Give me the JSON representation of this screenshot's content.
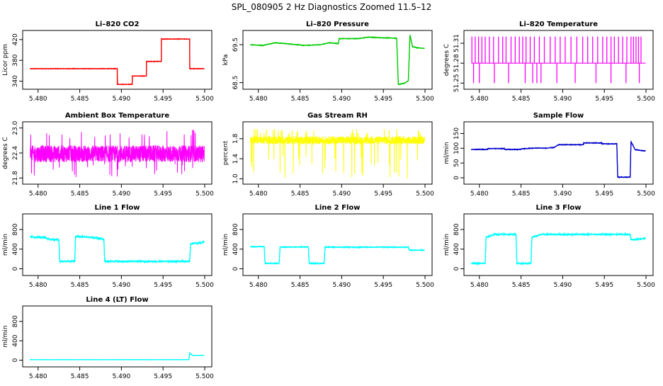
{
  "title": "SPL_080905  2 Hz Diagnostics Zoomed 11.5–12",
  "chart_data": [
    {
      "type": "line",
      "title": "Li–820 CO2",
      "ylabel": "Licor ppm",
      "color": "#ff0000",
      "xlim": [
        5.479,
        5.5
      ],
      "ylim": [
        330,
        432
      ],
      "xticks": [
        "5.480",
        "5.485",
        "5.490",
        "5.495",
        "5.500"
      ],
      "yticks": [
        340,
        380,
        420
      ],
      "ytick_labels": [
        "340",
        "380",
        "420"
      ],
      "noise": 0.5,
      "segments": [
        [
          5.479,
          364
        ],
        [
          5.4895,
          364
        ],
        [
          5.4895,
          334
        ],
        [
          5.4913,
          334
        ],
        [
          5.4913,
          350
        ],
        [
          5.493,
          350
        ],
        [
          5.493,
          378
        ],
        [
          5.4948,
          378
        ],
        [
          5.4948,
          421
        ],
        [
          5.4982,
          421
        ],
        [
          5.4982,
          364
        ],
        [
          5.49995,
          364
        ]
      ]
    },
    {
      "type": "line",
      "title": "Li–820 Pressure",
      "ylabel": "kPa",
      "color": "#00cc00",
      "xlim": [
        5.479,
        5.5
      ],
      "ylim": [
        68.4,
        69.8
      ],
      "xticks": [
        "5.480",
        "5.485",
        "5.490",
        "5.495",
        "5.500"
      ],
      "yticks": [
        68.5,
        69.5
      ],
      "ytick_labels": [
        "68.5",
        "69.5"
      ],
      "noise": 0.008,
      "segments": [
        [
          5.479,
          69.5
        ],
        [
          5.4805,
          69.48
        ],
        [
          5.482,
          69.55
        ],
        [
          5.4837,
          69.52
        ],
        [
          5.4855,
          69.48
        ],
        [
          5.4875,
          69.5
        ],
        [
          5.4885,
          69.55
        ],
        [
          5.4896,
          69.53
        ],
        [
          5.4897,
          69.66
        ],
        [
          5.492,
          69.66
        ],
        [
          5.4932,
          69.7
        ],
        [
          5.4948,
          69.68
        ],
        [
          5.4956,
          69.68
        ],
        [
          5.4966,
          69.67
        ],
        [
          5.4968,
          68.45
        ],
        [
          5.4975,
          68.48
        ],
        [
          5.498,
          68.55
        ],
        [
          5.4982,
          69.76
        ],
        [
          5.4985,
          69.45
        ],
        [
          5.499,
          69.42
        ],
        [
          5.49995,
          69.4
        ]
      ]
    },
    {
      "type": "step",
      "title": "Li–820 Temperature",
      "ylabel": "degrees C",
      "color": "#ff00ff",
      "xlim": [
        5.479,
        5.5
      ],
      "ylim": [
        51.245,
        51.325
      ],
      "xticks": [
        "5.480",
        "5.485",
        "5.490",
        "5.495",
        "5.500"
      ],
      "yticks": [
        51.25,
        51.28,
        51.31
      ],
      "ytick_labels": [
        "51.25",
        "51.28",
        "51.31"
      ],
      "base": 51.28,
      "high": 51.32,
      "low": 51.25,
      "up_spikes": [
        5.4791,
        5.4795,
        5.4799,
        5.4803,
        5.4807,
        5.4812,
        5.4817,
        5.4823,
        5.4828,
        5.4832,
        5.4838,
        5.4843,
        5.4848,
        5.4852,
        5.4856,
        5.4861,
        5.4866,
        5.4872,
        5.4878,
        5.4885,
        5.4891,
        5.4897,
        5.4903,
        5.491,
        5.4917,
        5.4924,
        5.493,
        5.4936,
        5.4942,
        5.4948,
        5.4953,
        5.4958,
        5.4962,
        5.4967,
        5.4972,
        5.4977,
        5.4982,
        5.4985,
        5.4988,
        5.4991,
        5.4994
      ],
      "down_spikes": [
        5.4793,
        5.48,
        5.4818,
        5.4835,
        5.4855,
        5.4864,
        5.4869,
        5.4874,
        5.4893,
        5.4915,
        5.494,
        5.4958,
        5.4976,
        5.4992
      ]
    },
    {
      "type": "noise",
      "title": "Ambient Box Temperature",
      "ylabel": "degrees C",
      "color": "#ff00ff",
      "xlim": [
        5.479,
        5.5
      ],
      "ylim": [
        21.72,
        23.08
      ],
      "xticks": [
        "5.480",
        "5.485",
        "5.490",
        "5.495",
        "5.500"
      ],
      "yticks": [
        21.8,
        22.4,
        23.0
      ],
      "ytick_labels": [
        "21.8",
        "22.4",
        "23.0"
      ],
      "center": 22.38,
      "spread": 0.2,
      "spike_low": 21.8,
      "spike_high": 23.0
    },
    {
      "type": "noise",
      "title": "Gas Stream RH",
      "ylabel": "percent",
      "color": "#ffff00",
      "xlim": [
        5.479,
        5.5
      ],
      "ylim": [
        0.95,
        2.08
      ],
      "xticks": [
        "5.480",
        "5.485",
        "5.490",
        "5.495",
        "5.500"
      ],
      "yticks": [
        1.0,
        1.4,
        1.8
      ],
      "ytick_labels": [
        "1.0",
        "1.4",
        "1.8"
      ],
      "center": 1.77,
      "spread": 0.08,
      "spike_low": 1.0,
      "spike_high": 2.0
    },
    {
      "type": "line",
      "title": "Sample Flow",
      "ylabel": "ml/min",
      "color": "#0000cc",
      "xlim": [
        5.479,
        5.5
      ],
      "ylim": [
        -12,
        180
      ],
      "xticks": [
        "5.480",
        "5.485",
        "5.490",
        "5.495",
        "5.500"
      ],
      "yticks": [
        0,
        50,
        100,
        150
      ],
      "ytick_labels": [
        "0",
        "50",
        "100",
        "150"
      ],
      "noise": 1.2,
      "segments": [
        [
          5.479,
          96
        ],
        [
          5.481,
          96
        ],
        [
          5.481,
          99
        ],
        [
          5.483,
          99
        ],
        [
          5.483,
          96
        ],
        [
          5.485,
          96
        ],
        [
          5.485,
          98
        ],
        [
          5.487,
          101
        ],
        [
          5.488,
          100
        ],
        [
          5.489,
          103
        ],
        [
          5.4895,
          112
        ],
        [
          5.4925,
          112
        ],
        [
          5.4925,
          118
        ],
        [
          5.4947,
          118
        ],
        [
          5.4947,
          115
        ],
        [
          5.4965,
          115
        ],
        [
          5.4966,
          2
        ],
        [
          5.4981,
          2
        ],
        [
          5.4982,
          123
        ],
        [
          5.4987,
          95
        ],
        [
          5.49995,
          91
        ]
      ]
    },
    {
      "type": "line",
      "title": "Line 1 Flow",
      "ylabel": "ml/min",
      "color": "#00ffff",
      "xlim": [
        5.479,
        5.5
      ],
      "ylim": [
        -80,
        1060
      ],
      "xticks": [
        "5.480",
        "5.485",
        "5.490",
        "5.495",
        "5.500"
      ],
      "yticks": [
        0,
        400,
        800
      ],
      "ytick_labels": [
        "0",
        "400",
        "800"
      ],
      "noise": 16,
      "segments": [
        [
          5.479,
          650
        ],
        [
          5.4808,
          640
        ],
        [
          5.4813,
          600
        ],
        [
          5.4825,
          590
        ],
        [
          5.4826,
          150
        ],
        [
          5.4844,
          150
        ],
        [
          5.4845,
          660
        ],
        [
          5.4863,
          640
        ],
        [
          5.4872,
          620
        ],
        [
          5.4879,
          600
        ],
        [
          5.488,
          150
        ],
        [
          5.4982,
          150
        ],
        [
          5.4983,
          510
        ],
        [
          5.49995,
          540
        ]
      ]
    },
    {
      "type": "line",
      "title": "Line 2 Flow",
      "ylabel": "ml/min",
      "color": "#00ffff",
      "xlim": [
        5.479,
        5.5
      ],
      "ylim": [
        -80,
        1060
      ],
      "xticks": [
        "5.480",
        "5.485",
        "5.490",
        "5.495",
        "5.500"
      ],
      "yticks": [
        0,
        400,
        800
      ],
      "ytick_labels": [
        "0",
        "400",
        "800"
      ],
      "noise": 9,
      "segments": [
        [
          5.479,
          450
        ],
        [
          5.4807,
          450
        ],
        [
          5.4808,
          110
        ],
        [
          5.4825,
          110
        ],
        [
          5.4826,
          440
        ],
        [
          5.486,
          445
        ],
        [
          5.4861,
          110
        ],
        [
          5.4879,
          110
        ],
        [
          5.488,
          440
        ],
        [
          5.498,
          440
        ],
        [
          5.4981,
          380
        ],
        [
          5.49995,
          380
        ]
      ]
    },
    {
      "type": "line",
      "title": "Line 3 Flow",
      "ylabel": "ml/min",
      "color": "#00ffff",
      "xlim": [
        5.479,
        5.5
      ],
      "ylim": [
        -80,
        1060
      ],
      "xticks": [
        "5.480",
        "5.485",
        "5.490",
        "5.495",
        "5.500"
      ],
      "yticks": [
        0,
        400,
        800
      ],
      "ytick_labels": [
        "0",
        "400",
        "800"
      ],
      "noise": 14,
      "segments": [
        [
          5.479,
          110
        ],
        [
          5.4807,
          110
        ],
        [
          5.4808,
          640
        ],
        [
          5.4818,
          700
        ],
        [
          5.4844,
          700
        ],
        [
          5.4845,
          110
        ],
        [
          5.4862,
          110
        ],
        [
          5.4863,
          640
        ],
        [
          5.4875,
          700
        ],
        [
          5.4981,
          700
        ],
        [
          5.4982,
          590
        ],
        [
          5.49995,
          620
        ]
      ]
    },
    {
      "type": "line",
      "title": "Line 4 (LT) Flow",
      "ylabel": "ml/min",
      "color": "#00ffff",
      "xlim": [
        5.479,
        5.5
      ],
      "ylim": [
        -80,
        1060
      ],
      "xticks": [
        "5.480",
        "5.485",
        "5.490",
        "5.495",
        "5.500"
      ],
      "yticks": [
        0,
        400,
        800
      ],
      "ytick_labels": [
        "0",
        "400",
        "800"
      ],
      "noise": 2,
      "segments": [
        [
          5.479,
          10
        ],
        [
          5.4981,
          10
        ],
        [
          5.4982,
          150
        ],
        [
          5.4985,
          100
        ],
        [
          5.49995,
          100
        ]
      ]
    }
  ]
}
